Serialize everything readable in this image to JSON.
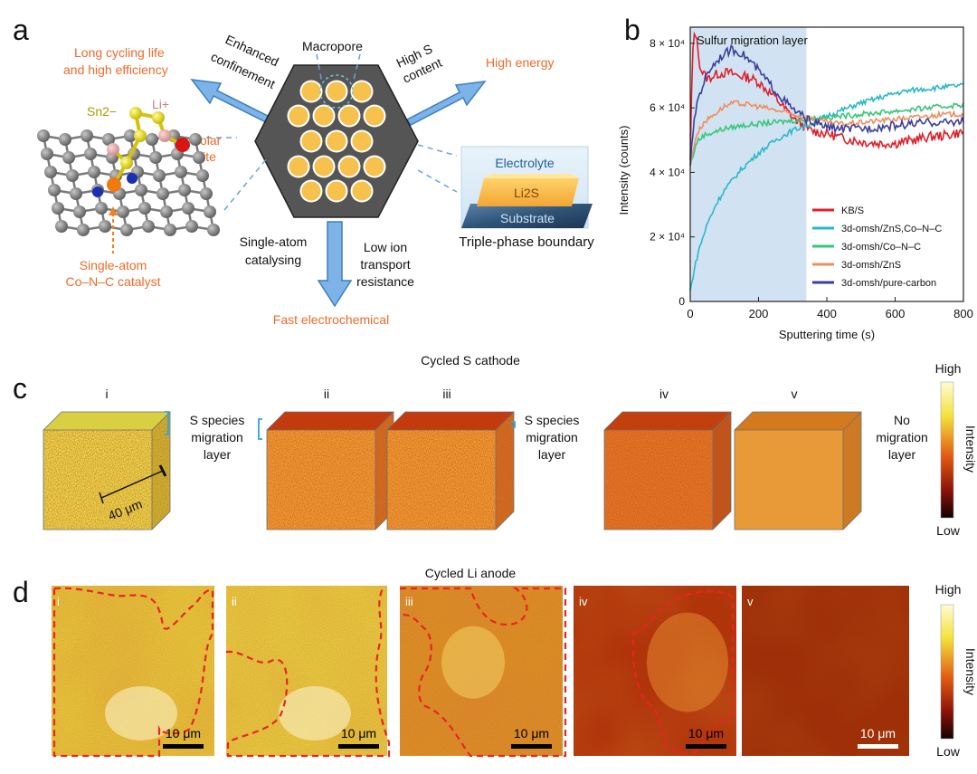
{
  "panel_labels": {
    "a": "a",
    "b": "b",
    "c": "c",
    "d": "d"
  },
  "panel_a": {
    "macropore": "Macropore",
    "enhanced_line1": "Enhanced",
    "enhanced_line2": "confinement",
    "high_s_line1": "High S",
    "high_s_line2": "content",
    "long_cycling_line1": "Long cycling life",
    "long_cycling_line2": "and high efficiency",
    "high_energy": "High energy",
    "sn_label": "Sn2−",
    "li_label": "Li+",
    "polar_line1": "Polar",
    "polar_line2": "site",
    "single_atom_cat_line1": "Single-atom",
    "single_atom_cat_line2": "Co–N–C catalyst",
    "catalysing_line1": "Single-atom",
    "catalysing_line2": "catalysing",
    "low_ion_line1": "Low ion",
    "low_ion_line2": "transport",
    "low_ion_line3": "resistance",
    "fast": "Fast electrochemical",
    "electrolyte": "Electrolyte",
    "li2s": "Li2S",
    "substrate": "Substrate",
    "tpb": "Triple-phase boundary"
  },
  "panel_c": {
    "title": "Cycled S cathode",
    "roman": [
      "i",
      "ii",
      "iii",
      "iv",
      "v"
    ],
    "species_line1": "S species",
    "species_line2": "migration",
    "species_line3": "layer",
    "no_line1": "No",
    "no_line2": "migration",
    "no_line3": "layer",
    "scale": "40 μm",
    "cb_high": "High",
    "cb_low": "Low",
    "cb_label": "Intensity"
  },
  "panel_d": {
    "title": "Cycled Li anode",
    "roman": [
      "i",
      "ii",
      "iii",
      "iv",
      "v"
    ],
    "scale": "10 μm",
    "cb_high": "High",
    "cb_low": "Low",
    "cb_label": "Intensity"
  },
  "chart_data": {
    "type": "line",
    "title": "",
    "annotation": "Sulfur migration layer",
    "xlabel": "Sputtering time (s)",
    "ylabel": "Intensity (counts)",
    "xlim": [
      0,
      800
    ],
    "ylim": [
      0,
      85000
    ],
    "xticks": [
      0,
      200,
      400,
      600,
      800
    ],
    "yticks": [
      0,
      20000,
      40000,
      60000,
      80000
    ],
    "ytick_labels": [
      "0",
      "2 × 10⁴",
      "4 × 10⁴",
      "6 × 10⁴",
      "8 × 10⁴"
    ],
    "shaded_region": [
      0,
      340
    ],
    "legend_position": "lower-right",
    "series": [
      {
        "name": "KB/S",
        "color": "#e0202a",
        "x": [
          0,
          5,
          10,
          15,
          20,
          30,
          50,
          80,
          110,
          140,
          170,
          200,
          250,
          300,
          350,
          400,
          450,
          500,
          550,
          600,
          650,
          700,
          750,
          800
        ],
        "y": [
          43000,
          70000,
          82000,
          84000,
          80000,
          72000,
          69000,
          70500,
          71000,
          70000,
          69500,
          68000,
          63000,
          57000,
          53000,
          52000,
          50500,
          49500,
          49000,
          49000,
          50000,
          51000,
          51500,
          52500
        ]
      },
      {
        "name": "3d-omsh/ZnS,Co–N–C",
        "color": "#2ab7c9",
        "x": [
          0,
          10,
          25,
          50,
          75,
          100,
          150,
          200,
          250,
          300,
          350,
          400,
          450,
          500,
          550,
          600,
          650,
          700,
          750,
          800
        ],
        "y": [
          3000,
          9000,
          16000,
          24000,
          30000,
          34500,
          41000,
          46000,
          50000,
          53000,
          55000,
          57500,
          59500,
          61500,
          63000,
          64500,
          65500,
          66000,
          66500,
          67000
        ]
      },
      {
        "name": "3d-omsh/Co–N–C",
        "color": "#37c67a",
        "x": [
          0,
          5,
          10,
          20,
          40,
          70,
          100,
          150,
          200,
          250,
          300,
          350,
          400,
          450,
          500,
          550,
          600,
          650,
          700,
          750,
          800
        ],
        "y": [
          42000,
          44000,
          46000,
          49500,
          51500,
          52500,
          53500,
          54500,
          55000,
          55500,
          56000,
          56500,
          57000,
          57500,
          58000,
          58500,
          59000,
          59500,
          60000,
          60500,
          61000
        ]
      },
      {
        "name": "3d-omsh/ZnS",
        "color": "#f28d5c",
        "x": [
          0,
          5,
          10,
          20,
          40,
          70,
          100,
          130,
          170,
          220,
          280,
          340,
          400,
          450,
          500,
          550,
          600,
          650,
          700,
          750,
          800
        ],
        "y": [
          42000,
          45000,
          48000,
          52000,
          55500,
          58000,
          60500,
          61500,
          61000,
          60000,
          58500,
          57000,
          55500,
          55000,
          55500,
          56000,
          56500,
          57000,
          57500,
          58000,
          58000
        ]
      },
      {
        "name": "3d-omsh/pure-carbon",
        "color": "#3a3f9e",
        "x": [
          0,
          5,
          10,
          20,
          40,
          60,
          90,
          120,
          150,
          180,
          220,
          260,
          300,
          350,
          400,
          450,
          500,
          550,
          600,
          650,
          700,
          750,
          800
        ],
        "y": [
          43000,
          48000,
          54000,
          62000,
          68000,
          72500,
          76000,
          78000,
          77000,
          74000,
          69000,
          64000,
          59500,
          56000,
          54000,
          53500,
          53500,
          54000,
          54500,
          55000,
          55500,
          55500,
          56000
        ]
      }
    ]
  }
}
